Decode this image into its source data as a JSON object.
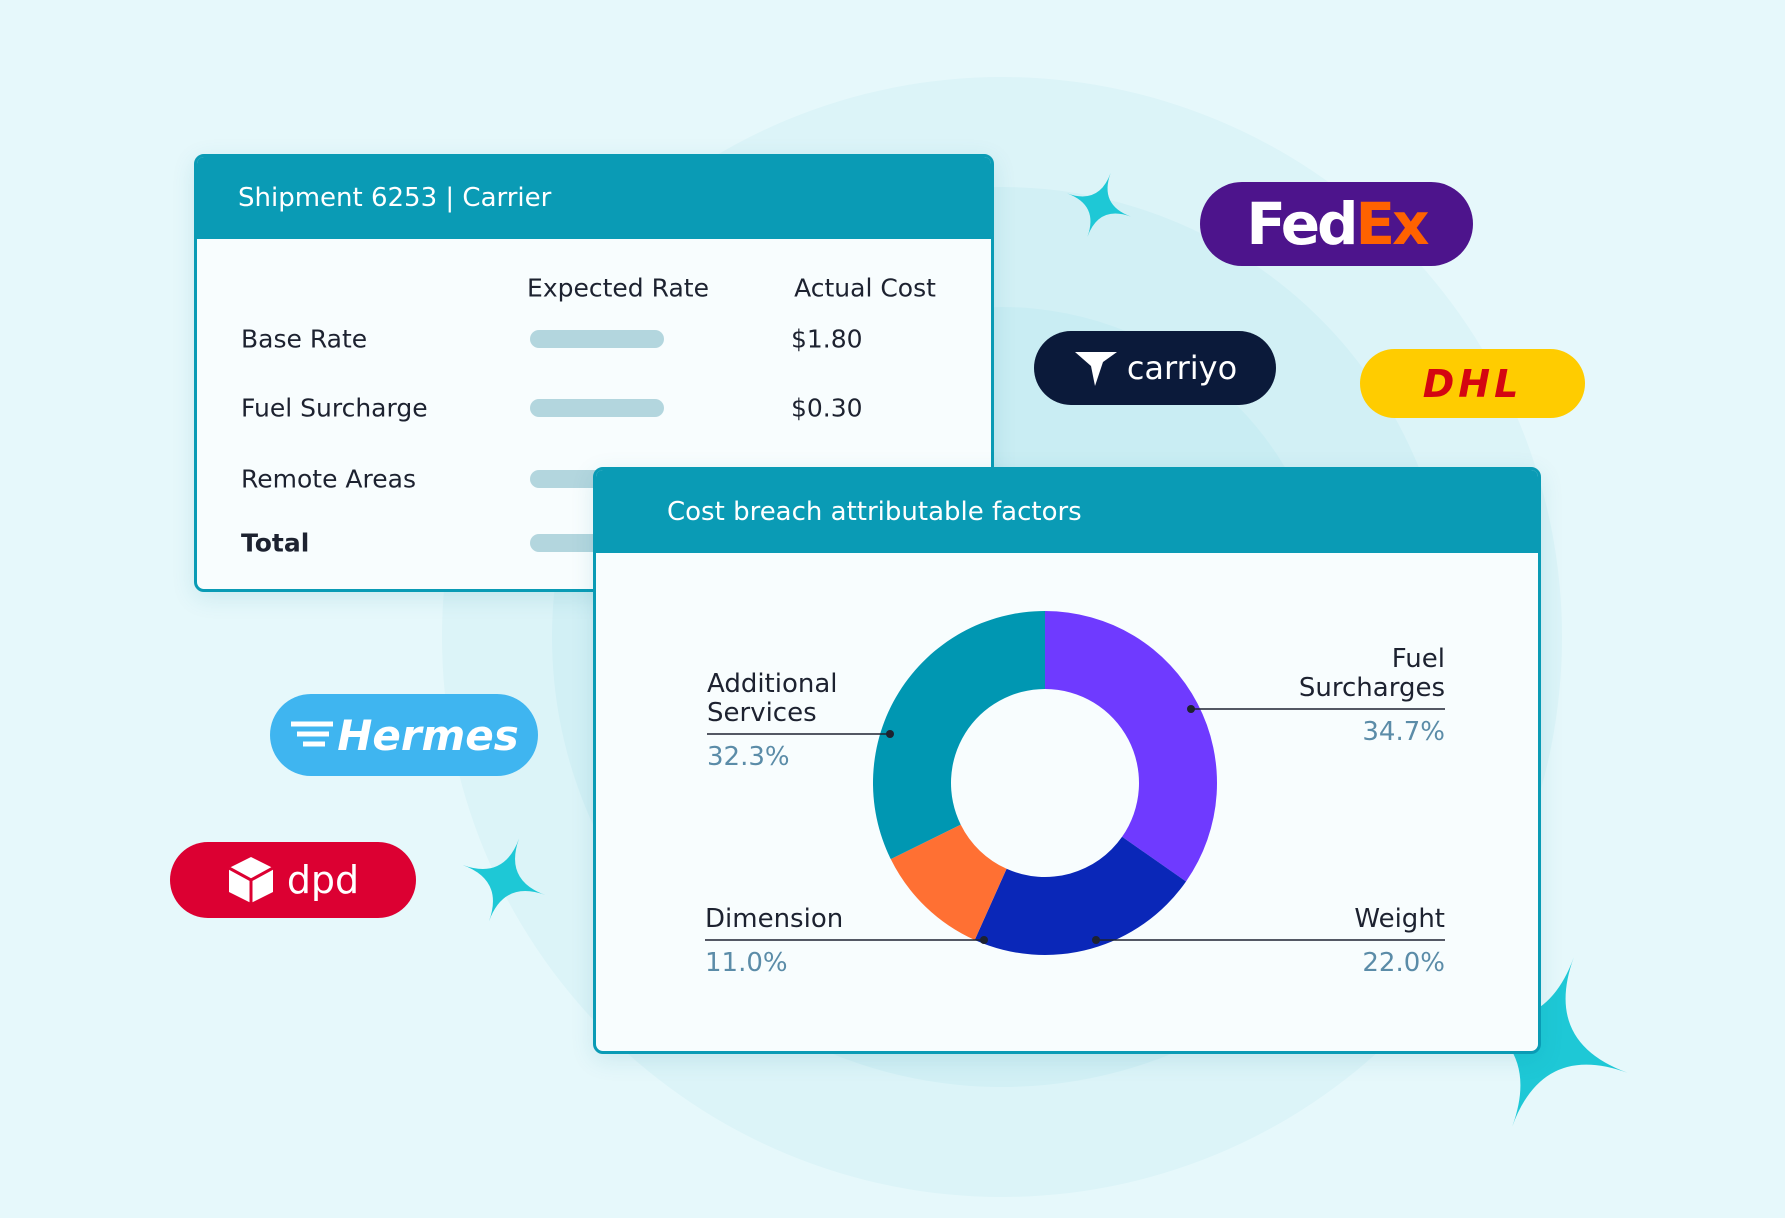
{
  "shipment_card": {
    "title": "Shipment 6253 | Carrier",
    "columns": [
      "Expected Rate",
      "Actual Cost"
    ],
    "rows": [
      {
        "label": "Base Rate",
        "actual": "$1.80"
      },
      {
        "label": "Fuel Surcharge",
        "actual": "$0.30"
      },
      {
        "label": "Remote Areas"
      },
      {
        "label": "Total"
      }
    ]
  },
  "carriers": {
    "fedex": [
      "Fed",
      "Ex"
    ],
    "carriyo": "carriyo",
    "dhl": "DHL",
    "hermes": "Hermes",
    "dpd": "dpd"
  },
  "chart_data": {
    "type": "pie",
    "title": "Cost breach attributable factors",
    "categories": [
      "Fuel Surcharges",
      "Weight",
      "Dimension",
      "Additional Services"
    ],
    "values": [
      34.7,
      22.0,
      11.0,
      32.3
    ],
    "value_labels": [
      "34.7%",
      "22.0%",
      "11.0%",
      "32.3%"
    ],
    "colors": [
      "#6f3aff",
      "#0a27b8",
      "#ff7033",
      "#0097b2"
    ],
    "donut": true
  }
}
